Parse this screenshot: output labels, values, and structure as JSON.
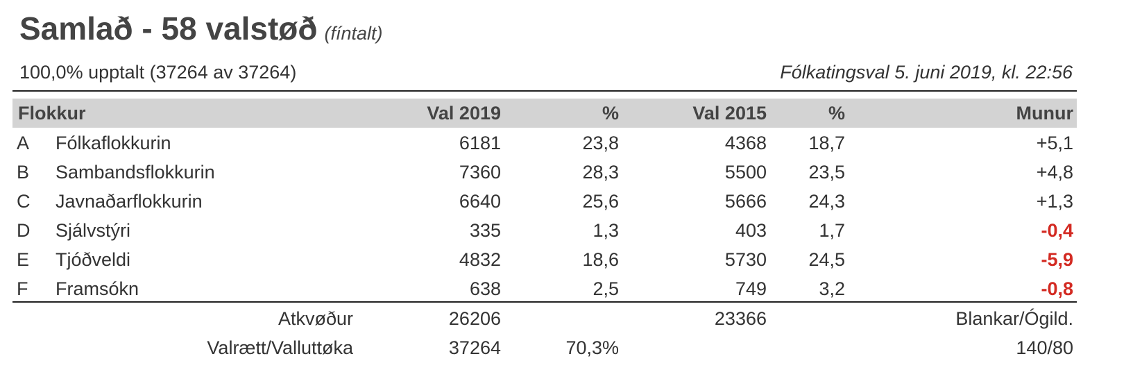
{
  "title": "Samlað - 58 valstøð",
  "subtitle": "(fíntalt)",
  "progress": "100,0% upptalt (37264 av 37264)",
  "election": "Fólkatingsval 5. juni 2019, kl. 22:56",
  "headers": {
    "party": "Flokkur",
    "val2019": "Val 2019",
    "pct2019": "%",
    "val2015": "Val 2015",
    "pct2015": "%",
    "diff": "Munur"
  },
  "rows": [
    {
      "letter": "A",
      "name": "Fólkaflokkurin",
      "v19": "6181",
      "p19": "23,8",
      "v15": "4368",
      "p15": "18,7",
      "diff": "+5,1"
    },
    {
      "letter": "B",
      "name": "Sambandsflokkurin",
      "v19": "7360",
      "p19": "28,3",
      "v15": "5500",
      "p15": "23,5",
      "diff": "+4,8"
    },
    {
      "letter": "C",
      "name": "Javnaðarflokkurin",
      "v19": "6640",
      "p19": "25,6",
      "v15": "5666",
      "p15": "24,3",
      "diff": "+1,3"
    },
    {
      "letter": "D",
      "name": "Sjálvstýri",
      "v19": "335",
      "p19": "1,3",
      "v15": "403",
      "p15": "1,7",
      "diff": "-0,4"
    },
    {
      "letter": "E",
      "name": "Tjóðveldi",
      "v19": "4832",
      "p19": "18,6",
      "v15": "5730",
      "p15": "24,5",
      "diff": "-5,9"
    },
    {
      "letter": "F",
      "name": "Framsókn",
      "v19": "638",
      "p19": "2,5",
      "v15": "749",
      "p15": "3,2",
      "diff": "-0,8"
    }
  ],
  "totals": {
    "votes_label": "Atkvøður",
    "votes2019": "26206",
    "votes2015": "23366",
    "blank_label": "Blankar/Ógild.",
    "eligible_label": "Valrætt/Valluttøka",
    "eligible": "37264",
    "turnout": "70,3%",
    "blank_value": "140/80"
  },
  "colors": {
    "negative": "#d32a22",
    "header_bg": "#d3d3d3"
  }
}
